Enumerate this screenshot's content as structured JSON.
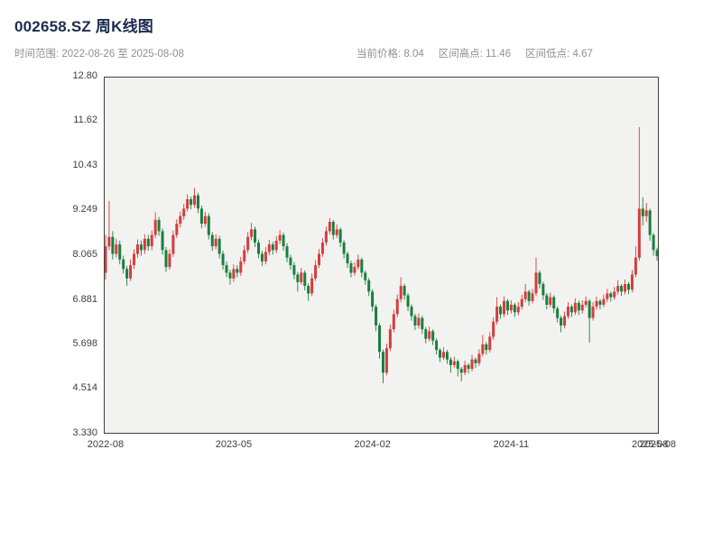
{
  "header": {
    "title": "002658.SZ 周K线图",
    "time_range": "时间范围: 2022-08-26 至 2025-08-08",
    "stat_current": "当前价格: 8.04",
    "stat_high": "区间高点: 11.46",
    "stat_low": "区间低点: 4.67"
  },
  "chart_data": {
    "type": "candlestick",
    "title": "002658.SZ 周K线图",
    "interval": "weekly",
    "x_range": [
      "2022-08-26",
      "2025-08-08"
    ],
    "current_price": 8.04,
    "range_high": 11.46,
    "range_low": 4.67,
    "ylim": [
      3.33,
      12.8
    ],
    "grid": false,
    "legend": "none",
    "background": "#f2f2f0",
    "frame_color": "#3f3f3f",
    "up_color": "#d43d3d",
    "down_color": "#1a7f3d",
    "y_ticks": [
      {
        "label": "12.80",
        "value": 12.8
      },
      {
        "label": "11.62",
        "value": 11.62
      },
      {
        "label": "10.43",
        "value": 10.43
      },
      {
        "label": "9.249",
        "value": 9.249
      },
      {
        "label": "8.065",
        "value": 8.065
      },
      {
        "label": "6.881",
        "value": 6.881
      },
      {
        "label": "5.698",
        "value": 5.698
      },
      {
        "label": "4.514",
        "value": 4.514
      },
      {
        "label": "3.330",
        "value": 3.33
      }
    ],
    "x_ticks": [
      {
        "label": "2022-08",
        "i": 0
      },
      {
        "label": "2023-05",
        "i": 36
      },
      {
        "label": "2024-02",
        "i": 75
      },
      {
        "label": "2024-11",
        "i": 114
      },
      {
        "label": "2025-08",
        "i": 153
      },
      {
        "label": "2025-08",
        "i": 155.2
      }
    ],
    "ohlc_format": [
      "open",
      "high",
      "low",
      "close"
    ],
    "candles": [
      [
        7.6,
        8.6,
        7.42,
        8.3
      ],
      [
        8.3,
        9.5,
        8.2,
        8.55
      ],
      [
        8.55,
        8.7,
        7.95,
        8.1
      ],
      [
        8.1,
        8.5,
        8.0,
        8.35
      ],
      [
        8.35,
        8.45,
        7.82,
        7.95
      ],
      [
        7.95,
        8.05,
        7.58,
        7.7
      ],
      [
        7.7,
        7.78,
        7.25,
        7.45
      ],
      [
        7.45,
        7.95,
        7.38,
        7.8
      ],
      [
        7.8,
        8.22,
        7.7,
        8.1
      ],
      [
        8.1,
        8.48,
        8.0,
        8.35
      ],
      [
        8.35,
        8.45,
        8.05,
        8.2
      ],
      [
        8.2,
        8.62,
        8.1,
        8.5
      ],
      [
        8.5,
        8.6,
        8.18,
        8.3
      ],
      [
        8.3,
        8.72,
        8.2,
        8.6
      ],
      [
        8.6,
        9.2,
        8.52,
        9.0
      ],
      [
        9.0,
        9.08,
        8.58,
        8.7
      ],
      [
        8.7,
        8.78,
        8.08,
        8.2
      ],
      [
        8.2,
        8.28,
        7.62,
        7.75
      ],
      [
        7.75,
        8.22,
        7.68,
        8.1
      ],
      [
        8.1,
        8.72,
        8.02,
        8.6
      ],
      [
        8.6,
        9.02,
        8.52,
        8.9
      ],
      [
        8.9,
        9.22,
        8.8,
        9.1
      ],
      [
        9.1,
        9.42,
        9.0,
        9.3
      ],
      [
        9.3,
        9.68,
        9.22,
        9.55
      ],
      [
        9.55,
        9.62,
        9.28,
        9.4
      ],
      [
        9.4,
        9.85,
        9.32,
        9.65
      ],
      [
        9.65,
        9.72,
        9.18,
        9.3
      ],
      [
        9.3,
        9.38,
        8.78,
        8.9
      ],
      [
        8.9,
        9.22,
        8.82,
        9.1
      ],
      [
        9.1,
        9.18,
        8.48,
        8.6
      ],
      [
        8.6,
        8.68,
        8.18,
        8.3
      ],
      [
        8.3,
        8.62,
        8.22,
        8.5
      ],
      [
        8.5,
        8.58,
        7.98,
        8.1
      ],
      [
        8.1,
        8.18,
        7.68,
        7.8
      ],
      [
        7.8,
        7.9,
        7.48,
        7.6
      ],
      [
        7.6,
        7.68,
        7.28,
        7.45
      ],
      [
        7.45,
        7.82,
        7.36,
        7.7
      ],
      [
        7.7,
        7.8,
        7.48,
        7.6
      ],
      [
        7.6,
        8.02,
        7.52,
        7.9
      ],
      [
        7.9,
        8.32,
        7.82,
        8.2
      ],
      [
        8.2,
        8.68,
        8.12,
        8.55
      ],
      [
        8.55,
        8.92,
        8.46,
        8.75
      ],
      [
        8.75,
        8.82,
        8.28,
        8.4
      ],
      [
        8.4,
        8.48,
        7.98,
        8.1
      ],
      [
        8.1,
        8.18,
        7.78,
        7.9
      ],
      [
        7.9,
        8.28,
        7.82,
        8.15
      ],
      [
        8.15,
        8.47,
        8.06,
        8.35
      ],
      [
        8.35,
        8.42,
        8.08,
        8.2
      ],
      [
        8.2,
        8.57,
        8.12,
        8.45
      ],
      [
        8.45,
        8.73,
        8.36,
        8.6
      ],
      [
        8.6,
        8.66,
        8.18,
        8.3
      ],
      [
        8.3,
        8.38,
        7.88,
        8.0
      ],
      [
        8.0,
        8.08,
        7.68,
        7.8
      ],
      [
        7.8,
        7.88,
        7.43,
        7.55
      ],
      [
        7.55,
        7.62,
        7.1,
        7.35
      ],
      [
        7.35,
        7.73,
        7.28,
        7.6
      ],
      [
        7.6,
        7.66,
        7.13,
        7.25
      ],
      [
        7.25,
        7.32,
        6.85,
        7.05
      ],
      [
        7.05,
        7.58,
        6.98,
        7.45
      ],
      [
        7.45,
        7.93,
        7.38,
        7.8
      ],
      [
        7.8,
        8.23,
        7.72,
        8.1
      ],
      [
        8.1,
        8.52,
        8.02,
        8.4
      ],
      [
        8.4,
        8.82,
        8.32,
        8.7
      ],
      [
        8.7,
        9.05,
        8.62,
        8.95
      ],
      [
        8.95,
        9.0,
        8.48,
        8.6
      ],
      [
        8.6,
        8.88,
        8.52,
        8.75
      ],
      [
        8.75,
        8.8,
        8.28,
        8.4
      ],
      [
        8.4,
        8.46,
        7.98,
        8.1
      ],
      [
        8.1,
        8.16,
        7.73,
        7.85
      ],
      [
        7.85,
        7.92,
        7.48,
        7.6
      ],
      [
        7.6,
        7.88,
        7.52,
        7.75
      ],
      [
        7.75,
        8.08,
        7.68,
        7.95
      ],
      [
        7.95,
        8.0,
        7.48,
        7.6
      ],
      [
        7.6,
        7.66,
        7.28,
        7.4
      ],
      [
        7.4,
        7.46,
        6.98,
        7.1
      ],
      [
        7.1,
        7.16,
        6.58,
        6.7
      ],
      [
        6.7,
        6.76,
        6.05,
        6.2
      ],
      [
        6.2,
        6.26,
        5.32,
        5.5
      ],
      [
        5.5,
        5.56,
        4.67,
        4.95
      ],
      [
        4.95,
        5.72,
        4.88,
        5.6
      ],
      [
        5.6,
        6.22,
        5.52,
        6.1
      ],
      [
        6.1,
        6.62,
        6.02,
        6.5
      ],
      [
        6.5,
        7.02,
        6.42,
        6.9
      ],
      [
        6.9,
        7.48,
        6.82,
        7.25
      ],
      [
        7.25,
        7.3,
        6.88,
        7.0
      ],
      [
        7.0,
        7.06,
        6.58,
        6.7
      ],
      [
        6.7,
        6.76,
        6.33,
        6.45
      ],
      [
        6.45,
        6.51,
        6.08,
        6.2
      ],
      [
        6.2,
        6.52,
        6.12,
        6.4
      ],
      [
        6.4,
        6.46,
        5.98,
        6.1
      ],
      [
        6.1,
        6.16,
        5.73,
        5.85
      ],
      [
        5.85,
        6.17,
        5.78,
        6.05
      ],
      [
        6.05,
        6.1,
        5.68,
        5.8
      ],
      [
        5.8,
        5.86,
        5.43,
        5.55
      ],
      [
        5.55,
        5.6,
        5.23,
        5.35
      ],
      [
        5.35,
        5.62,
        5.28,
        5.5
      ],
      [
        5.5,
        5.55,
        5.18,
        5.3
      ],
      [
        5.3,
        5.36,
        4.95,
        5.15
      ],
      [
        5.15,
        5.37,
        5.08,
        5.25
      ],
      [
        5.25,
        5.3,
        4.85,
        5.05
      ],
      [
        5.05,
        5.1,
        4.72,
        4.95
      ],
      [
        4.95,
        5.27,
        4.88,
        5.15
      ],
      [
        5.15,
        5.2,
        4.93,
        5.05
      ],
      [
        5.05,
        5.42,
        4.98,
        5.3
      ],
      [
        5.3,
        5.35,
        5.08,
        5.2
      ],
      [
        5.2,
        5.57,
        5.13,
        5.45
      ],
      [
        5.45,
        5.95,
        5.38,
        5.7
      ],
      [
        5.7,
        5.76,
        5.43,
        5.55
      ],
      [
        5.55,
        6.02,
        5.48,
        5.9
      ],
      [
        5.9,
        6.42,
        5.82,
        6.3
      ],
      [
        6.3,
        6.95,
        6.22,
        6.7
      ],
      [
        6.7,
        6.76,
        6.38,
        6.5
      ],
      [
        6.5,
        6.97,
        6.42,
        6.85
      ],
      [
        6.85,
        6.9,
        6.48,
        6.6
      ],
      [
        6.6,
        6.87,
        6.52,
        6.75
      ],
      [
        6.75,
        6.8,
        6.43,
        6.55
      ],
      [
        6.55,
        6.82,
        6.47,
        6.7
      ],
      [
        6.7,
        7.02,
        6.62,
        6.9
      ],
      [
        6.9,
        7.3,
        6.82,
        7.1
      ],
      [
        7.1,
        7.15,
        6.73,
        6.85
      ],
      [
        6.85,
        7.17,
        6.78,
        7.05
      ],
      [
        7.05,
        8.0,
        6.98,
        7.6
      ],
      [
        7.6,
        7.66,
        7.18,
        7.3
      ],
      [
        7.3,
        7.36,
        6.88,
        7.0
      ],
      [
        7.0,
        7.06,
        6.63,
        6.75
      ],
      [
        6.75,
        7.07,
        6.68,
        6.95
      ],
      [
        6.95,
        7.0,
        6.53,
        6.65
      ],
      [
        6.65,
        6.71,
        6.28,
        6.4
      ],
      [
        6.4,
        6.46,
        6.02,
        6.2
      ],
      [
        6.2,
        6.57,
        6.12,
        6.45
      ],
      [
        6.45,
        6.82,
        6.38,
        6.7
      ],
      [
        6.7,
        6.76,
        6.43,
        6.55
      ],
      [
        6.55,
        6.92,
        6.48,
        6.8
      ],
      [
        6.8,
        6.86,
        6.48,
        6.6
      ],
      [
        6.6,
        6.87,
        6.52,
        6.75
      ],
      [
        6.75,
        6.97,
        6.68,
        6.85
      ],
      [
        6.85,
        6.9,
        5.75,
        6.4
      ],
      [
        6.4,
        6.82,
        6.33,
        6.7
      ],
      [
        6.7,
        6.97,
        6.62,
        6.85
      ],
      [
        6.85,
        6.9,
        6.63,
        6.75
      ],
      [
        6.75,
        7.02,
        6.68,
        6.9
      ],
      [
        6.9,
        7.17,
        6.82,
        7.05
      ],
      [
        7.05,
        7.1,
        6.83,
        6.95
      ],
      [
        6.95,
        7.22,
        6.88,
        7.1
      ],
      [
        7.1,
        7.4,
        7.02,
        7.25
      ],
      [
        7.25,
        7.3,
        6.98,
        7.1
      ],
      [
        7.1,
        7.42,
        7.02,
        7.3
      ],
      [
        7.3,
        7.36,
        7.03,
        7.15
      ],
      [
        7.15,
        7.67,
        7.08,
        7.55
      ],
      [
        7.55,
        8.3,
        7.48,
        8.0
      ],
      [
        8.0,
        11.46,
        7.92,
        9.3
      ],
      [
        9.3,
        9.6,
        8.85,
        9.1
      ],
      [
        9.1,
        9.45,
        8.95,
        9.25
      ],
      [
        9.25,
        9.3,
        8.45,
        8.6
      ],
      [
        8.6,
        8.65,
        8.05,
        8.2
      ],
      [
        8.2,
        8.26,
        7.92,
        8.04
      ]
    ]
  }
}
